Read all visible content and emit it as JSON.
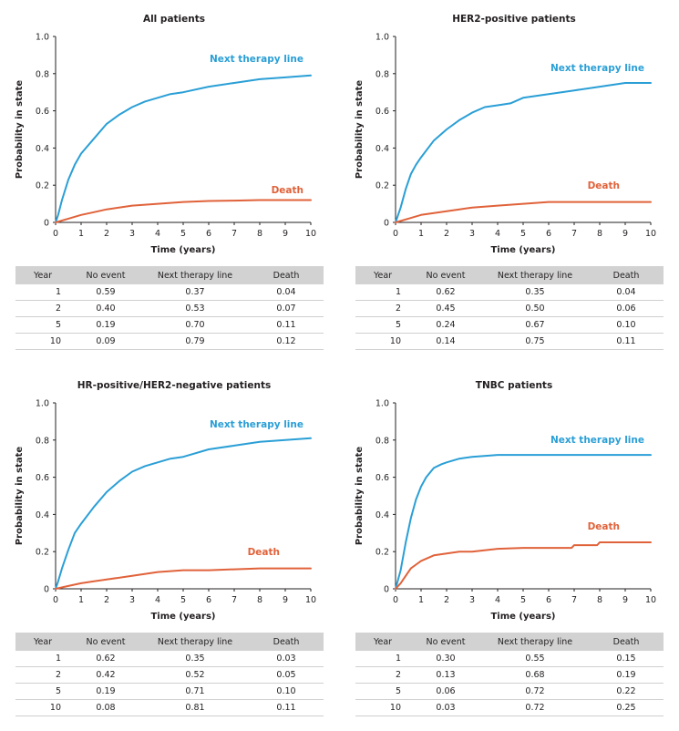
{
  "colors": {
    "next_therapy": "#2a9fd6",
    "death": "#e0623a",
    "axis": "#231f20",
    "table_header": "#d2d2d2"
  },
  "common": {
    "xlabel": "Time (years)",
    "ylabel": "Probability in state",
    "table_headers": [
      "Year",
      "No event",
      "Next therapy line",
      "Death"
    ]
  },
  "chart_data": [
    {
      "type": "line",
      "title": "All patients",
      "xlabel": "Time (years)",
      "ylabel": "Probability in state",
      "xlim": [
        0,
        10
      ],
      "ylim": [
        0,
        1.0
      ],
      "xticks": [
        0,
        1,
        2,
        3,
        4,
        5,
        6,
        7,
        8,
        9,
        10
      ],
      "yticks": [
        "0",
        "0.2",
        "0.4",
        "0.6",
        "0.8",
        "1.0"
      ],
      "series": [
        {
          "name": "Next therapy line",
          "x": [
            0,
            0.1,
            0.25,
            0.5,
            0.75,
            1,
            1.5,
            2,
            2.5,
            3,
            3.5,
            4,
            4.5,
            5,
            6,
            7,
            8,
            9,
            10
          ],
          "y": [
            0,
            0.04,
            0.12,
            0.23,
            0.31,
            0.37,
            0.45,
            0.53,
            0.58,
            0.62,
            0.65,
            0.67,
            0.69,
            0.7,
            0.73,
            0.75,
            0.77,
            0.78,
            0.79
          ]
        },
        {
          "name": "Death",
          "x": [
            0,
            0.5,
            1,
            1.5,
            2,
            3,
            4,
            5,
            6,
            7,
            8,
            9,
            10
          ],
          "y": [
            0,
            0.02,
            0.04,
            0.055,
            0.07,
            0.09,
            0.1,
            0.11,
            0.115,
            0.117,
            0.12,
            0.12,
            0.12
          ]
        }
      ],
      "table": [
        [
          "1",
          "0.59",
          "0.37",
          "0.04"
        ],
        [
          "2",
          "0.40",
          "0.53",
          "0.07"
        ],
        [
          "5",
          "0.19",
          "0.70",
          "0.11"
        ],
        [
          "10",
          "0.09",
          "0.79",
          "0.12"
        ]
      ]
    },
    {
      "type": "line",
      "title": "HER2-positive patients",
      "xlabel": "Time (years)",
      "ylabel": "Probability in state",
      "xlim": [
        0,
        10
      ],
      "ylim": [
        0,
        1.0
      ],
      "xticks": [
        0,
        1,
        2,
        3,
        4,
        5,
        6,
        7,
        8,
        9,
        10
      ],
      "yticks": [
        "0",
        "0.2",
        "0.4",
        "0.6",
        "0.8",
        "1.0"
      ],
      "series": [
        {
          "name": "Next therapy line",
          "x": [
            0,
            0.2,
            0.4,
            0.6,
            0.8,
            1,
            1.5,
            2,
            2.5,
            3,
            3.5,
            4,
            4.5,
            5,
            5.5,
            6,
            7,
            8,
            9,
            10
          ],
          "y": [
            0,
            0.08,
            0.18,
            0.26,
            0.31,
            0.35,
            0.44,
            0.5,
            0.55,
            0.59,
            0.62,
            0.63,
            0.64,
            0.67,
            0.68,
            0.69,
            0.71,
            0.73,
            0.75,
            0.75
          ]
        },
        {
          "name": "Death",
          "x": [
            0,
            0.5,
            1,
            1.5,
            2,
            2.5,
            3,
            4,
            5,
            6,
            7,
            8,
            9,
            10
          ],
          "y": [
            0,
            0.02,
            0.04,
            0.05,
            0.06,
            0.07,
            0.08,
            0.09,
            0.1,
            0.11,
            0.11,
            0.11,
            0.11,
            0.11
          ]
        }
      ],
      "table": [
        [
          "1",
          "0.62",
          "0.35",
          "0.04"
        ],
        [
          "2",
          "0.45",
          "0.50",
          "0.06"
        ],
        [
          "5",
          "0.24",
          "0.67",
          "0.10"
        ],
        [
          "10",
          "0.14",
          "0.75",
          "0.11"
        ]
      ]
    },
    {
      "type": "line",
      "title": "HR-positive/HER2-negative patients",
      "xlabel": "Time (years)",
      "ylabel": "Probability in state",
      "xlim": [
        0,
        10
      ],
      "ylim": [
        0,
        1.0
      ],
      "xticks": [
        0,
        1,
        2,
        3,
        4,
        5,
        6,
        7,
        8,
        9,
        10
      ],
      "yticks": [
        "0",
        "0.2",
        "0.4",
        "0.6",
        "0.8",
        "1.0"
      ],
      "series": [
        {
          "name": "Next therapy line",
          "x": [
            0,
            0.1,
            0.25,
            0.5,
            0.75,
            1,
            1.5,
            2,
            2.5,
            3,
            3.5,
            4,
            4.5,
            5,
            6,
            7,
            8,
            9,
            10
          ],
          "y": [
            0,
            0.04,
            0.11,
            0.21,
            0.3,
            0.35,
            0.44,
            0.52,
            0.58,
            0.63,
            0.66,
            0.68,
            0.7,
            0.71,
            0.75,
            0.77,
            0.79,
            0.8,
            0.81
          ]
        },
        {
          "name": "Death",
          "x": [
            0,
            0.5,
            1,
            1.5,
            2,
            3,
            4,
            5,
            6,
            7,
            8,
            9,
            10
          ],
          "y": [
            0,
            0.015,
            0.03,
            0.04,
            0.05,
            0.07,
            0.09,
            0.1,
            0.1,
            0.105,
            0.11,
            0.11,
            0.11
          ]
        }
      ],
      "table": [
        [
          "1",
          "0.62",
          "0.35",
          "0.03"
        ],
        [
          "2",
          "0.42",
          "0.52",
          "0.05"
        ],
        [
          "5",
          "0.19",
          "0.71",
          "0.10"
        ],
        [
          "10",
          "0.08",
          "0.81",
          "0.11"
        ]
      ]
    },
    {
      "type": "line",
      "title": "TNBC patients",
      "xlabel": "Time (years)",
      "ylabel": "Probability in state",
      "xlim": [
        0,
        10
      ],
      "ylim": [
        0,
        1.0
      ],
      "xticks": [
        0,
        1,
        2,
        3,
        4,
        5,
        6,
        7,
        8,
        9,
        10
      ],
      "yticks": [
        "0",
        "0.2",
        "0.4",
        "0.6",
        "0.8",
        "1.0"
      ],
      "series": [
        {
          "name": "Next therapy line",
          "x": [
            0,
            0.2,
            0.4,
            0.6,
            0.8,
            1,
            1.2,
            1.5,
            1.8,
            2,
            2.5,
            3,
            4,
            5,
            6,
            7,
            8,
            9,
            10
          ],
          "y": [
            0,
            0.1,
            0.25,
            0.38,
            0.48,
            0.55,
            0.6,
            0.65,
            0.67,
            0.68,
            0.7,
            0.71,
            0.72,
            0.72,
            0.72,
            0.72,
            0.72,
            0.72,
            0.72
          ]
        },
        {
          "name": "Death",
          "x": [
            0,
            0.2,
            0.4,
            0.6,
            0.8,
            1,
            1.5,
            2,
            2.5,
            3,
            4,
            5,
            6,
            6.9,
            7,
            7.9,
            8,
            9,
            10
          ],
          "y": [
            0,
            0.03,
            0.07,
            0.11,
            0.13,
            0.15,
            0.18,
            0.19,
            0.2,
            0.2,
            0.215,
            0.22,
            0.22,
            0.22,
            0.235,
            0.235,
            0.25,
            0.25,
            0.25
          ]
        }
      ],
      "table": [
        [
          "1",
          "0.30",
          "0.55",
          "0.15"
        ],
        [
          "2",
          "0.13",
          "0.68",
          "0.19"
        ],
        [
          "5",
          "0.06",
          "0.72",
          "0.22"
        ],
        [
          "10",
          "0.03",
          "0.72",
          "0.25"
        ]
      ]
    }
  ]
}
